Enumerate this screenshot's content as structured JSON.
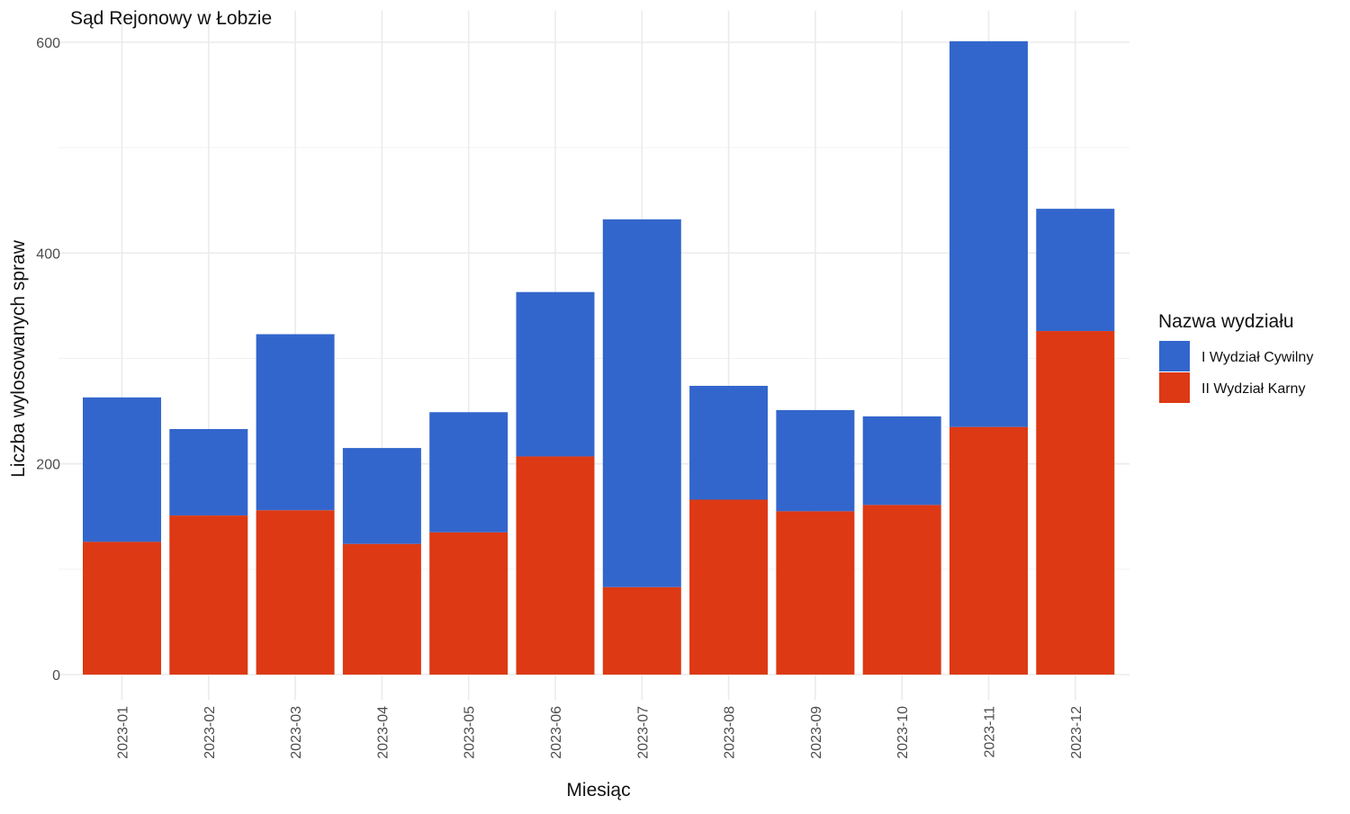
{
  "chart_data": {
    "type": "bar",
    "stacked": true,
    "title": "Sąd Rejonowy w Łobzie",
    "xlabel": "Miesiąc",
    "ylabel": "Liczba wylosowanych spraw",
    "categories": [
      "2023-01",
      "2023-02",
      "2023-03",
      "2023-04",
      "2023-05",
      "2023-06",
      "2023-07",
      "2023-08",
      "2023-09",
      "2023-10",
      "2023-11",
      "2023-12"
    ],
    "series": [
      {
        "name": "II Wydział Karny",
        "color": "#dd3914",
        "values": [
          126,
          151,
          156,
          124,
          135,
          207,
          83,
          166,
          155,
          161,
          235,
          326
        ]
      },
      {
        "name": "I Wydział Cywilny",
        "color": "#3366cc",
        "values": [
          137,
          82,
          167,
          91,
          114,
          156,
          349,
          108,
          96,
          84,
          366,
          116
        ]
      }
    ],
    "ylim": [
      0,
      600
    ],
    "yticks": [
      0,
      200,
      400,
      600
    ],
    "grid": true,
    "legend": {
      "title": "Nazwa wydziału",
      "position": "right",
      "entries": [
        "I Wydział Cywilny",
        "II Wydział Karny"
      ]
    }
  }
}
